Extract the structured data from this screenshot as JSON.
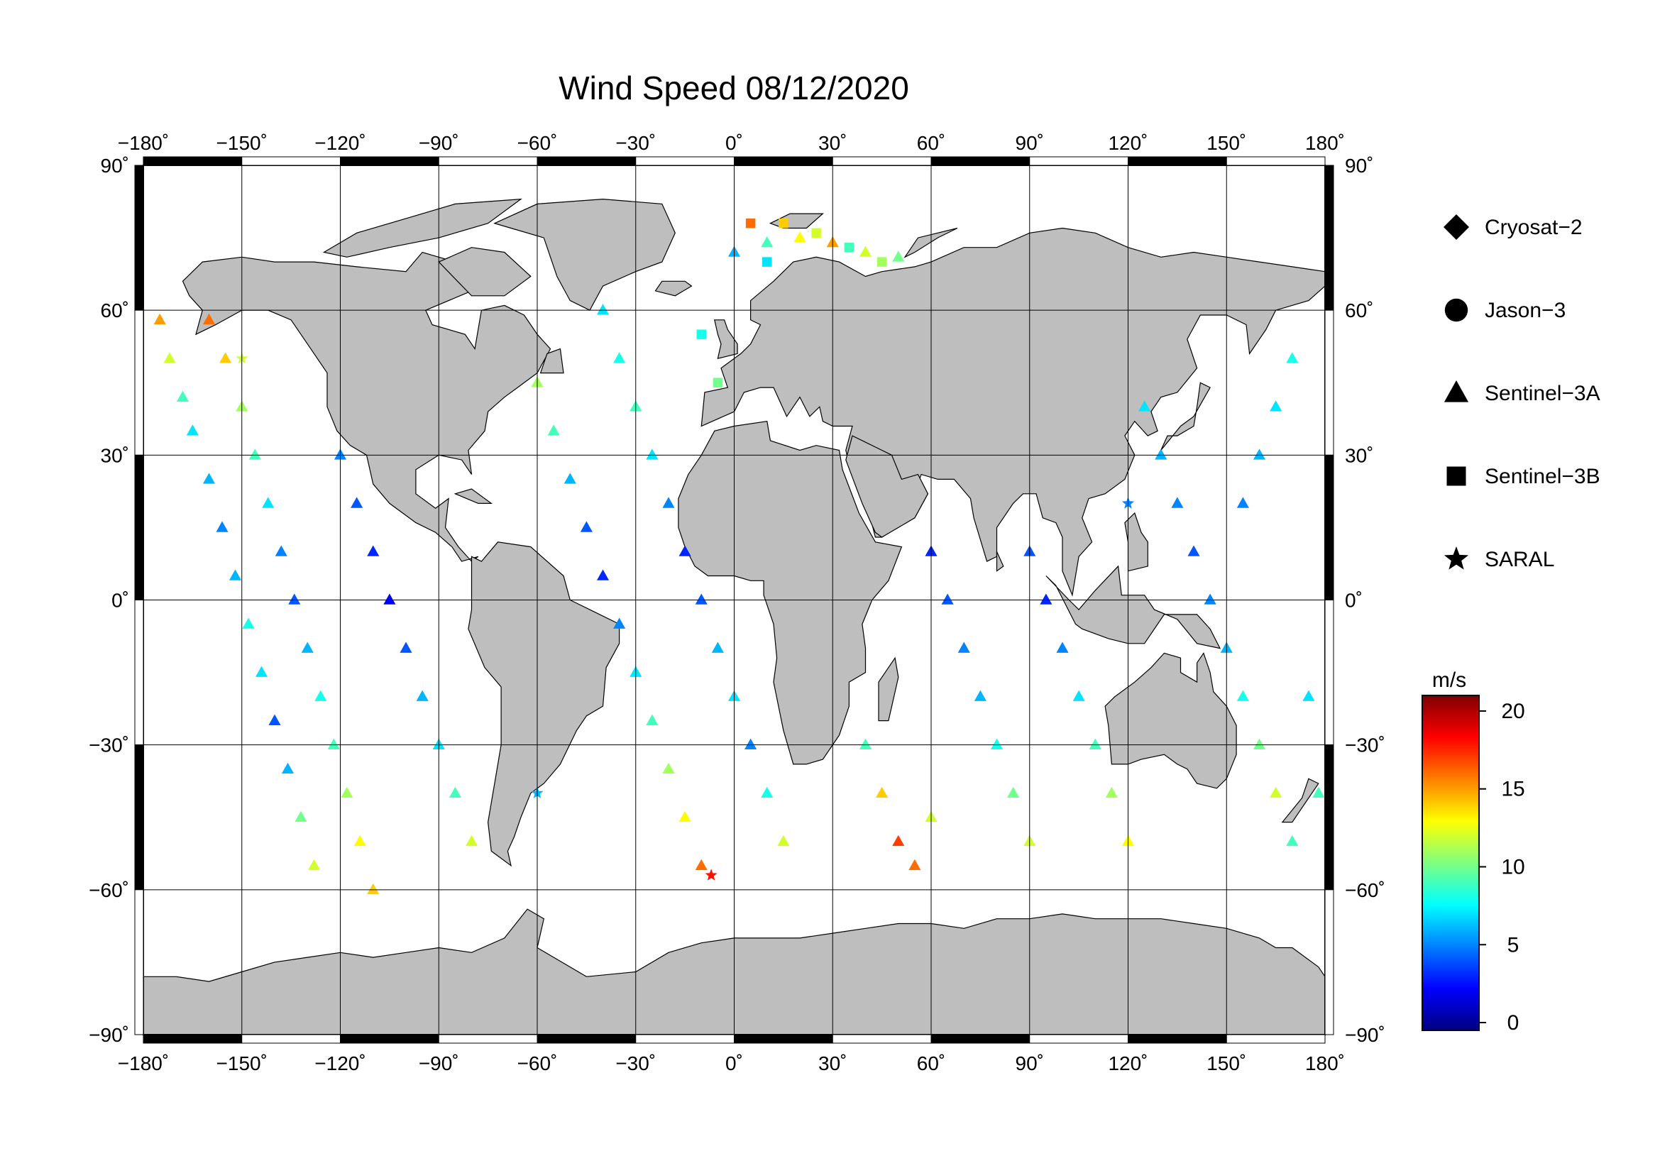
{
  "title": "Wind Speed 08/12/2020",
  "map": {
    "lon_range": [
      -180,
      180
    ],
    "lat_range": [
      -90,
      90
    ],
    "lon_ticks": [
      {
        "value": -180,
        "label": "−180˚"
      },
      {
        "value": -150,
        "label": "−150˚"
      },
      {
        "value": -120,
        "label": "−120˚"
      },
      {
        "value": -90,
        "label": "−90˚"
      },
      {
        "value": -60,
        "label": "−60˚"
      },
      {
        "value": -30,
        "label": "−30˚"
      },
      {
        "value": 0,
        "label": "0˚"
      },
      {
        "value": 30,
        "label": "30˚"
      },
      {
        "value": 60,
        "label": "60˚"
      },
      {
        "value": 90,
        "label": "90˚"
      },
      {
        "value": 120,
        "label": "120˚"
      },
      {
        "value": 150,
        "label": "150˚"
      },
      {
        "value": 180,
        "label": "180˚"
      }
    ],
    "lat_ticks": [
      {
        "value": 90,
        "label": "90˚"
      },
      {
        "value": 60,
        "label": "60˚"
      },
      {
        "value": 30,
        "label": "30˚"
      },
      {
        "value": 0,
        "label": "0˚"
      },
      {
        "value": -30,
        "label": "−30˚"
      },
      {
        "value": -60,
        "label": "−60˚"
      },
      {
        "value": -90,
        "label": "−90˚"
      }
    ],
    "grid": true,
    "land_color": "#bebebe",
    "ocean_color": "#ffffff"
  },
  "legend": {
    "placement": "right",
    "items": [
      {
        "label": "Cryosat−2",
        "symbol": "diamond"
      },
      {
        "label": "Jason−3",
        "symbol": "circle"
      },
      {
        "label": "Sentinel−3A",
        "symbol": "triangle"
      },
      {
        "label": "Sentinel−3B",
        "symbol": "square"
      },
      {
        "label": "SARAL",
        "symbol": "star"
      }
    ]
  },
  "colorbar": {
    "unit": "m/s",
    "range": [
      -0.5,
      21
    ],
    "ticks": [
      {
        "value": 0,
        "label": "0"
      },
      {
        "value": 5,
        "label": "5"
      },
      {
        "value": 10,
        "label": "10"
      },
      {
        "value": 15,
        "label": "15"
      },
      {
        "value": 20,
        "label": "20"
      }
    ],
    "colors": [
      "#00007f",
      "#0000ff",
      "#007fff",
      "#00ffff",
      "#7fff7f",
      "#ffff00",
      "#ff7f00",
      "#ff0000",
      "#7f0000"
    ]
  },
  "chart_data": {
    "type": "scatter",
    "title": "Wind Speed 08/12/2020",
    "xlabel": "",
    "ylabel": "",
    "xlim": [
      -180,
      180
    ],
    "ylim": [
      -90,
      90
    ],
    "value_unit": "m/s",
    "series": [
      {
        "name": "Sentinel−3A",
        "marker": "triangle",
        "points": [
          [
            -175,
            58,
            15
          ],
          [
            -172,
            50,
            12
          ],
          [
            -168,
            42,
            9
          ],
          [
            -165,
            35,
            7
          ],
          [
            -160,
            25,
            6
          ],
          [
            -156,
            15,
            5
          ],
          [
            -152,
            5,
            6
          ],
          [
            -148,
            -5,
            8
          ],
          [
            -144,
            -15,
            7
          ],
          [
            -140,
            -25,
            4
          ],
          [
            -136,
            -35,
            6
          ],
          [
            -132,
            -45,
            10
          ],
          [
            -128,
            -55,
            12
          ],
          [
            -160,
            58,
            16
          ],
          [
            -155,
            50,
            14
          ],
          [
            -150,
            40,
            11
          ],
          [
            -146,
            30,
            9
          ],
          [
            -142,
            20,
            7
          ],
          [
            -138,
            10,
            5
          ],
          [
            -134,
            0,
            4
          ],
          [
            -130,
            -10,
            6
          ],
          [
            -126,
            -20,
            8
          ],
          [
            -122,
            -30,
            9
          ],
          [
            -118,
            -40,
            11
          ],
          [
            -114,
            -50,
            13
          ],
          [
            -110,
            -60,
            14
          ],
          [
            -120,
            30,
            5
          ],
          [
            -115,
            20,
            4
          ],
          [
            -110,
            10,
            3
          ],
          [
            -105,
            0,
            2
          ],
          [
            -100,
            -10,
            4
          ],
          [
            -95,
            -20,
            6
          ],
          [
            -90,
            -30,
            7
          ],
          [
            -85,
            -40,
            9
          ],
          [
            -80,
            -50,
            12
          ],
          [
            -60,
            45,
            11
          ],
          [
            -55,
            35,
            9
          ],
          [
            -50,
            25,
            6
          ],
          [
            -45,
            15,
            4
          ],
          [
            -40,
            5,
            3
          ],
          [
            -35,
            -5,
            5
          ],
          [
            -30,
            -15,
            7
          ],
          [
            -25,
            -25,
            9
          ],
          [
            -20,
            -35,
            11
          ],
          [
            -15,
            -45,
            13
          ],
          [
            -10,
            -55,
            16
          ],
          [
            -40,
            60,
            7
          ],
          [
            -35,
            50,
            8
          ],
          [
            -30,
            40,
            9
          ],
          [
            -25,
            30,
            7
          ],
          [
            -20,
            20,
            5
          ],
          [
            -15,
            10,
            3
          ],
          [
            -10,
            0,
            4
          ],
          [
            -5,
            -10,
            6
          ],
          [
            0,
            -20,
            7
          ],
          [
            5,
            -30,
            5
          ],
          [
            10,
            -40,
            8
          ],
          [
            15,
            -50,
            12
          ],
          [
            0,
            72,
            6
          ],
          [
            10,
            74,
            9
          ],
          [
            20,
            75,
            13
          ],
          [
            30,
            74,
            15
          ],
          [
            40,
            72,
            12
          ],
          [
            50,
            71,
            10
          ],
          [
            40,
            -30,
            9
          ],
          [
            45,
            -40,
            14
          ],
          [
            50,
            -50,
            17
          ],
          [
            55,
            -55,
            16
          ],
          [
            60,
            -45,
            12
          ],
          [
            60,
            10,
            3
          ],
          [
            65,
            0,
            4
          ],
          [
            70,
            -10,
            5
          ],
          [
            75,
            -20,
            6
          ],
          [
            80,
            -30,
            8
          ],
          [
            85,
            -40,
            10
          ],
          [
            90,
            -50,
            12
          ],
          [
            90,
            10,
            4
          ],
          [
            95,
            0,
            3
          ],
          [
            100,
            -10,
            5
          ],
          [
            105,
            -20,
            7
          ],
          [
            110,
            -30,
            9
          ],
          [
            115,
            -40,
            11
          ],
          [
            120,
            -50,
            13
          ],
          [
            125,
            40,
            7
          ],
          [
            130,
            30,
            6
          ],
          [
            135,
            20,
            5
          ],
          [
            140,
            10,
            4
          ],
          [
            145,
            0,
            5
          ],
          [
            150,
            -10,
            6
          ],
          [
            155,
            -20,
            8
          ],
          [
            160,
            -30,
            10
          ],
          [
            165,
            -40,
            12
          ],
          [
            170,
            -50,
            9
          ],
          [
            170,
            50,
            8
          ],
          [
            165,
            40,
            7
          ],
          [
            160,
            30,
            6
          ],
          [
            155,
            20,
            5
          ],
          [
            175,
            -20,
            7
          ],
          [
            178,
            -40,
            9
          ]
        ]
      },
      {
        "name": "Sentinel−3B",
        "marker": "square",
        "points": [
          [
            5,
            78,
            16
          ],
          [
            15,
            78,
            14
          ],
          [
            25,
            76,
            12
          ],
          [
            35,
            73,
            9
          ],
          [
            45,
            70,
            11
          ],
          [
            -10,
            55,
            8
          ],
          [
            -5,
            45,
            10
          ],
          [
            10,
            70,
            7
          ]
        ]
      },
      {
        "name": "SARAL",
        "marker": "star",
        "points": [
          [
            -7,
            -57,
            18
          ],
          [
            -150,
            50,
            12
          ],
          [
            -60,
            -40,
            6
          ],
          [
            120,
            20,
            5
          ]
        ]
      }
    ]
  }
}
